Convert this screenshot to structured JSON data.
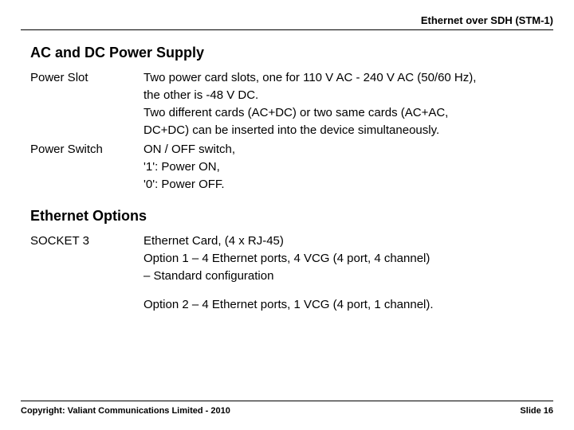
{
  "header": {
    "title": "Ethernet over SDH (STM-1)"
  },
  "sections": {
    "power": {
      "heading": "AC and DC Power Supply",
      "rows": {
        "slot": {
          "label": "Power Slot",
          "l1": "Two power card slots, one for 110 V AC - 240 V AC (50/60 Hz),",
          "l2": "the other is -48 V DC.",
          "l3": "Two different cards (AC+DC) or two same cards (AC+AC,",
          "l4": "DC+DC) can be inserted into the device simultaneously."
        },
        "switch": {
          "label": "Power Switch",
          "l1": "ON / OFF switch,",
          "l2": "'1': Power ON,",
          "l3": "'0': Power OFF."
        }
      }
    },
    "ethernet": {
      "heading": "Ethernet Options",
      "rows": {
        "socket3": {
          "label": "SOCKET 3",
          "l1": "Ethernet Card, (4 x RJ-45)",
          "l2": "Option 1 – 4 Ethernet ports, 4 VCG (4 port, 4 channel)",
          "l3": "– Standard configuration",
          "l4": "Option 2 – 4 Ethernet ports, 1 VCG (4 port, 1 channel)."
        }
      }
    }
  },
  "footer": {
    "copyright": "Copyright: Valiant Communications Limited - 2010",
    "slide": "Slide 16"
  }
}
